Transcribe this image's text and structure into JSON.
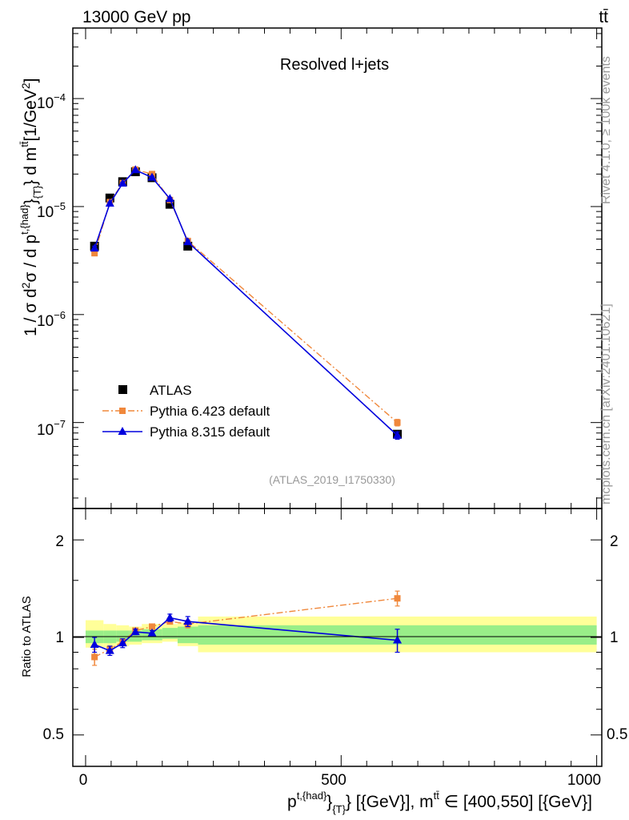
{
  "header": {
    "left_title": "13000 GeV pp",
    "right_title": "tt̄"
  },
  "side_labels": {
    "rivet": "Rivet 4.1.0, ≥ 100k events",
    "mcplots": "mcplots.cern.ch [arXiv:2401.10621]"
  },
  "colors": {
    "data": "#000000",
    "pythia6": "#f0883c",
    "pythia8": "#0000dd",
    "band_outer": "#ffff99",
    "band_inner": "#99ee88"
  },
  "chart_data": [
    {
      "type": "scatter",
      "panel": "main",
      "title": "Resolved l+jets",
      "analysis": "(ATLAS_2019_I1750330)",
      "yscale": "log",
      "ylim": [
        1.6e-08,
        0.00045
      ],
      "ylabel_parts": {
        "prefix": "1 / σ d",
        "exp2a": "2",
        "mid": "σ / d p",
        "sup_had": "t,{had}",
        "brace": "}",
        "sub_T": "{T}",
        "after": "} d m",
        "sup_tt": "tt̄",
        "unit_open": "[1/GeV",
        "unit_exp": "2",
        "unit_close": "]"
      },
      "yticks": [
        {
          "value": 1e-07,
          "base": "10",
          "exp": "−7"
        },
        {
          "value": 1e-06,
          "base": "10",
          "exp": "−6"
        },
        {
          "value": 1e-05,
          "base": "10",
          "exp": "−5"
        },
        {
          "value": 0.0001,
          "base": "10",
          "exp": "−4"
        }
      ],
      "legend": {
        "placement": "lower-left",
        "entries": [
          "ATLAS",
          "Pythia 6.423 default",
          "Pythia 8.315 default"
        ]
      },
      "series": [
        {
          "name": "ATLAS",
          "x": [
            17.5,
            47.5,
            72.5,
            97.5,
            130,
            165,
            200,
            610
          ],
          "y": [
            4.3e-06,
            1.2e-05,
            1.7e-05,
            2.1e-05,
            1.85e-05,
            1.05e-05,
            4.3e-06,
            7.8e-08
          ]
        },
        {
          "name": "Pythia 6.423 default",
          "x": [
            17.5,
            47.5,
            72.5,
            97.5,
            130,
            165,
            200,
            610
          ],
          "y": [
            3.7e-06,
            1.1e-05,
            1.65e-05,
            2.2e-05,
            2e-05,
            1.15e-05,
            4.8e-06,
            1e-07
          ],
          "err": [
            2e-07,
            3e-07,
            4e-07,
            5e-07,
            5e-07,
            3e-07,
            2e-07,
            7e-09
          ]
        },
        {
          "name": "Pythia 8.315 default",
          "x": [
            17.5,
            47.5,
            72.5,
            97.5,
            130,
            165,
            200,
            610
          ],
          "y": [
            4.1e-06,
            1.07e-05,
            1.64e-05,
            2.18e-05,
            1.86e-05,
            1.18e-05,
            4.7e-06,
            7.6e-08
          ],
          "err": [
            2e-07,
            3e-07,
            4e-07,
            5e-07,
            5e-07,
            3e-07,
            2e-07,
            6e-09
          ]
        }
      ]
    },
    {
      "type": "scatter",
      "panel": "ratio",
      "ylabel": "Ratio to ATLAS",
      "xlabel_parts": {
        "p": "p",
        "sup_had": "t,{had}",
        "brace": "}",
        "sub_T": "{T}",
        "mid": "} [{GeV}], m",
        "sup_tt": "tt̄",
        "tail": " ∈ [400,550] [{GeV}]"
      },
      "xlim": [
        -25,
        1010
      ],
      "ylim": [
        0.4,
        2.5
      ],
      "xticks": [
        0,
        500,
        1000
      ],
      "xtick_labels": [
        "0",
        "500",
        "1000"
      ],
      "yticks": [
        0.5,
        1,
        2
      ],
      "ytick_labels": [
        "0.5",
        "1",
        "2"
      ],
      "bins": [
        {
          "lo": 0,
          "hi": 35,
          "inner": [
            0.96,
            1.05
          ],
          "outer": [
            0.93,
            1.13
          ]
        },
        {
          "lo": 35,
          "hi": 60,
          "inner": [
            0.96,
            1.05
          ],
          "outer": [
            0.93,
            1.1
          ]
        },
        {
          "lo": 60,
          "hi": 85,
          "inner": [
            0.97,
            1.05
          ],
          "outer": [
            0.94,
            1.09
          ]
        },
        {
          "lo": 85,
          "hi": 110,
          "inner": [
            0.97,
            1.05
          ],
          "outer": [
            0.95,
            1.08
          ]
        },
        {
          "lo": 110,
          "hi": 150,
          "inner": [
            0.98,
            1.06
          ],
          "outer": [
            0.96,
            1.1
          ]
        },
        {
          "lo": 150,
          "hi": 180,
          "inner": [
            0.99,
            1.07
          ],
          "outer": [
            0.97,
            1.1
          ]
        },
        {
          "lo": 180,
          "hi": 220,
          "inner": [
            0.96,
            1.08
          ],
          "outer": [
            0.94,
            1.11
          ]
        },
        {
          "lo": 220,
          "hi": 1000,
          "inner": [
            0.95,
            1.09
          ],
          "outer": [
            0.9,
            1.16
          ]
        }
      ],
      "series": [
        {
          "name": "Pythia 6.423 default",
          "x": [
            17.5,
            47.5,
            72.5,
            97.5,
            130,
            165,
            200,
            610
          ],
          "y": [
            0.87,
            0.92,
            0.97,
            1.05,
            1.08,
            1.12,
            1.1,
            1.32
          ],
          "err": [
            0.05,
            0.02,
            0.02,
            0.02,
            0.02,
            0.02,
            0.03,
            0.07
          ]
        },
        {
          "name": "Pythia 8.315 default",
          "x": [
            17.5,
            47.5,
            72.5,
            97.5,
            130,
            165,
            200,
            610
          ],
          "y": [
            0.95,
            0.91,
            0.96,
            1.04,
            1.03,
            1.15,
            1.12,
            0.98
          ],
          "err": [
            0.05,
            0.03,
            0.03,
            0.02,
            0.02,
            0.03,
            0.04,
            0.08
          ]
        }
      ]
    }
  ]
}
